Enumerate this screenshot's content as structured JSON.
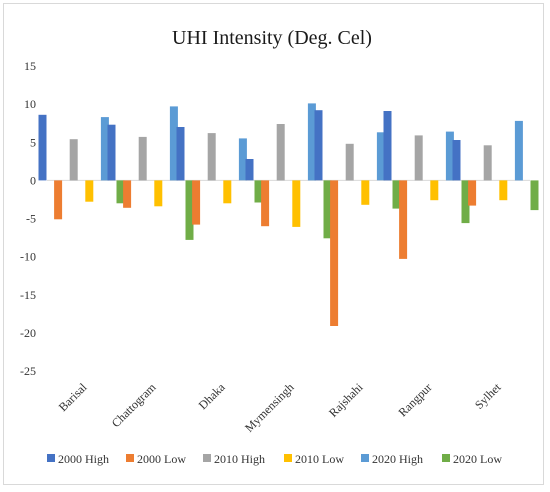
{
  "chart_data": {
    "type": "bar",
    "title": "UHI Intensity (Deg. Cel)",
    "xlabel": "",
    "ylabel": "",
    "ylim": [
      -25,
      15
    ],
    "yticks": [
      15,
      10,
      5,
      0,
      -5,
      -10,
      -15,
      -20,
      -25
    ],
    "grid": false,
    "legend_position": "bottom",
    "categories": [
      "Barisal",
      "Chattogram",
      "Dhaka",
      "Mymensingh",
      "Rajshahi",
      "Rangpur",
      "Sylhet"
    ],
    "series": [
      {
        "name": "2000 High",
        "color": "#4472C4",
        "values": [
          8.6,
          7.3,
          7.0,
          2.8,
          9.2,
          9.1,
          5.3
        ]
      },
      {
        "name": "2000 Low",
        "color": "#ED7D31",
        "values": [
          -5.1,
          -3.6,
          -5.8,
          -6.0,
          -19.1,
          -10.3,
          -3.3
        ]
      },
      {
        "name": "2010 High",
        "color": "#A5A5A5",
        "values": [
          5.4,
          5.7,
          6.2,
          7.4,
          4.8,
          5.9,
          4.6
        ]
      },
      {
        "name": "2010 Low",
        "color": "#FFC000",
        "values": [
          -2.8,
          -3.4,
          -3.0,
          -6.1,
          -3.2,
          -2.6,
          -2.6
        ]
      },
      {
        "name": "2020 High",
        "color": "#5B9BD5",
        "values": [
          8.3,
          9.7,
          5.5,
          10.1,
          6.3,
          6.4,
          7.8
        ]
      },
      {
        "name": "2020 Low",
        "color": "#70AD47",
        "values": [
          -3.0,
          -7.8,
          -2.9,
          -7.6,
          -3.7,
          -5.6,
          -3.9
        ]
      }
    ]
  }
}
